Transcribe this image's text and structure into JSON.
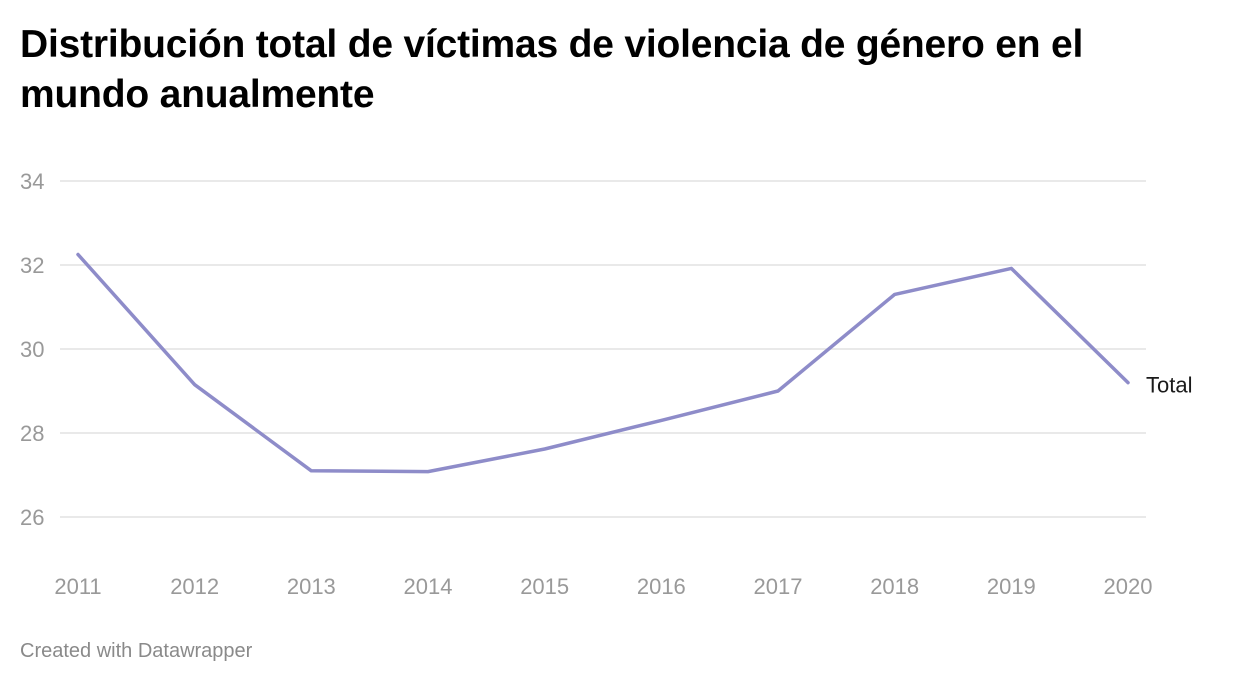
{
  "title": "Distribución total de víctimas de violencia de género en el mundo anualmente",
  "footer": "Created with Datawrapper",
  "chart_data": {
    "type": "line",
    "title": "Distribución total de víctimas de violencia de género en el mundo anualmente",
    "x": [
      "2011",
      "2012",
      "2013",
      "2014",
      "2015",
      "2016",
      "2017",
      "2018",
      "2019",
      "2020"
    ],
    "series": [
      {
        "name": "Total",
        "values": [
          32.25,
          29.15,
          27.1,
          27.08,
          27.62,
          28.3,
          29.0,
          31.3,
          31.92,
          29.2
        ],
        "color": "#8e8cc9"
      }
    ],
    "yticks": [
      26,
      28,
      30,
      32,
      34
    ],
    "ylim": [
      25,
      34
    ],
    "grid": true,
    "legend": "direct label at line end",
    "xlabel": "",
    "ylabel": ""
  }
}
